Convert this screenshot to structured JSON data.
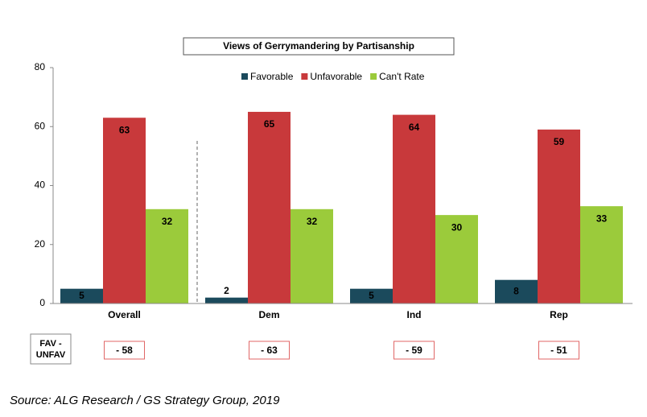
{
  "chart_data": {
    "type": "bar",
    "title": "Views of Gerrymandering by Partisanship",
    "categories": [
      "Overall",
      "Dem",
      "Ind",
      "Rep"
    ],
    "series": [
      {
        "name": "Favorable",
        "color": "#1b4a5c",
        "values": [
          5,
          2,
          5,
          8
        ]
      },
      {
        "name": "Unfavorable",
        "color": "#c8393b",
        "values": [
          63,
          65,
          64,
          59
        ]
      },
      {
        "name": "Can't Rate",
        "color": "#9bcb3b",
        "values": [
          32,
          32,
          30,
          33
        ]
      }
    ],
    "ylim": [
      0,
      80
    ],
    "yticks": [
      0,
      20,
      40,
      60,
      80
    ],
    "grid": false,
    "legend": "top",
    "net_label": [
      "FAV -",
      "UNFAV"
    ],
    "net_values": [
      -58,
      -63,
      -59,
      -51
    ],
    "net_value_labels": [
      "- 58",
      "- 63",
      "- 59",
      "- 51"
    ],
    "source": "Source: ALG Research / GS Strategy Group, 2019"
  }
}
